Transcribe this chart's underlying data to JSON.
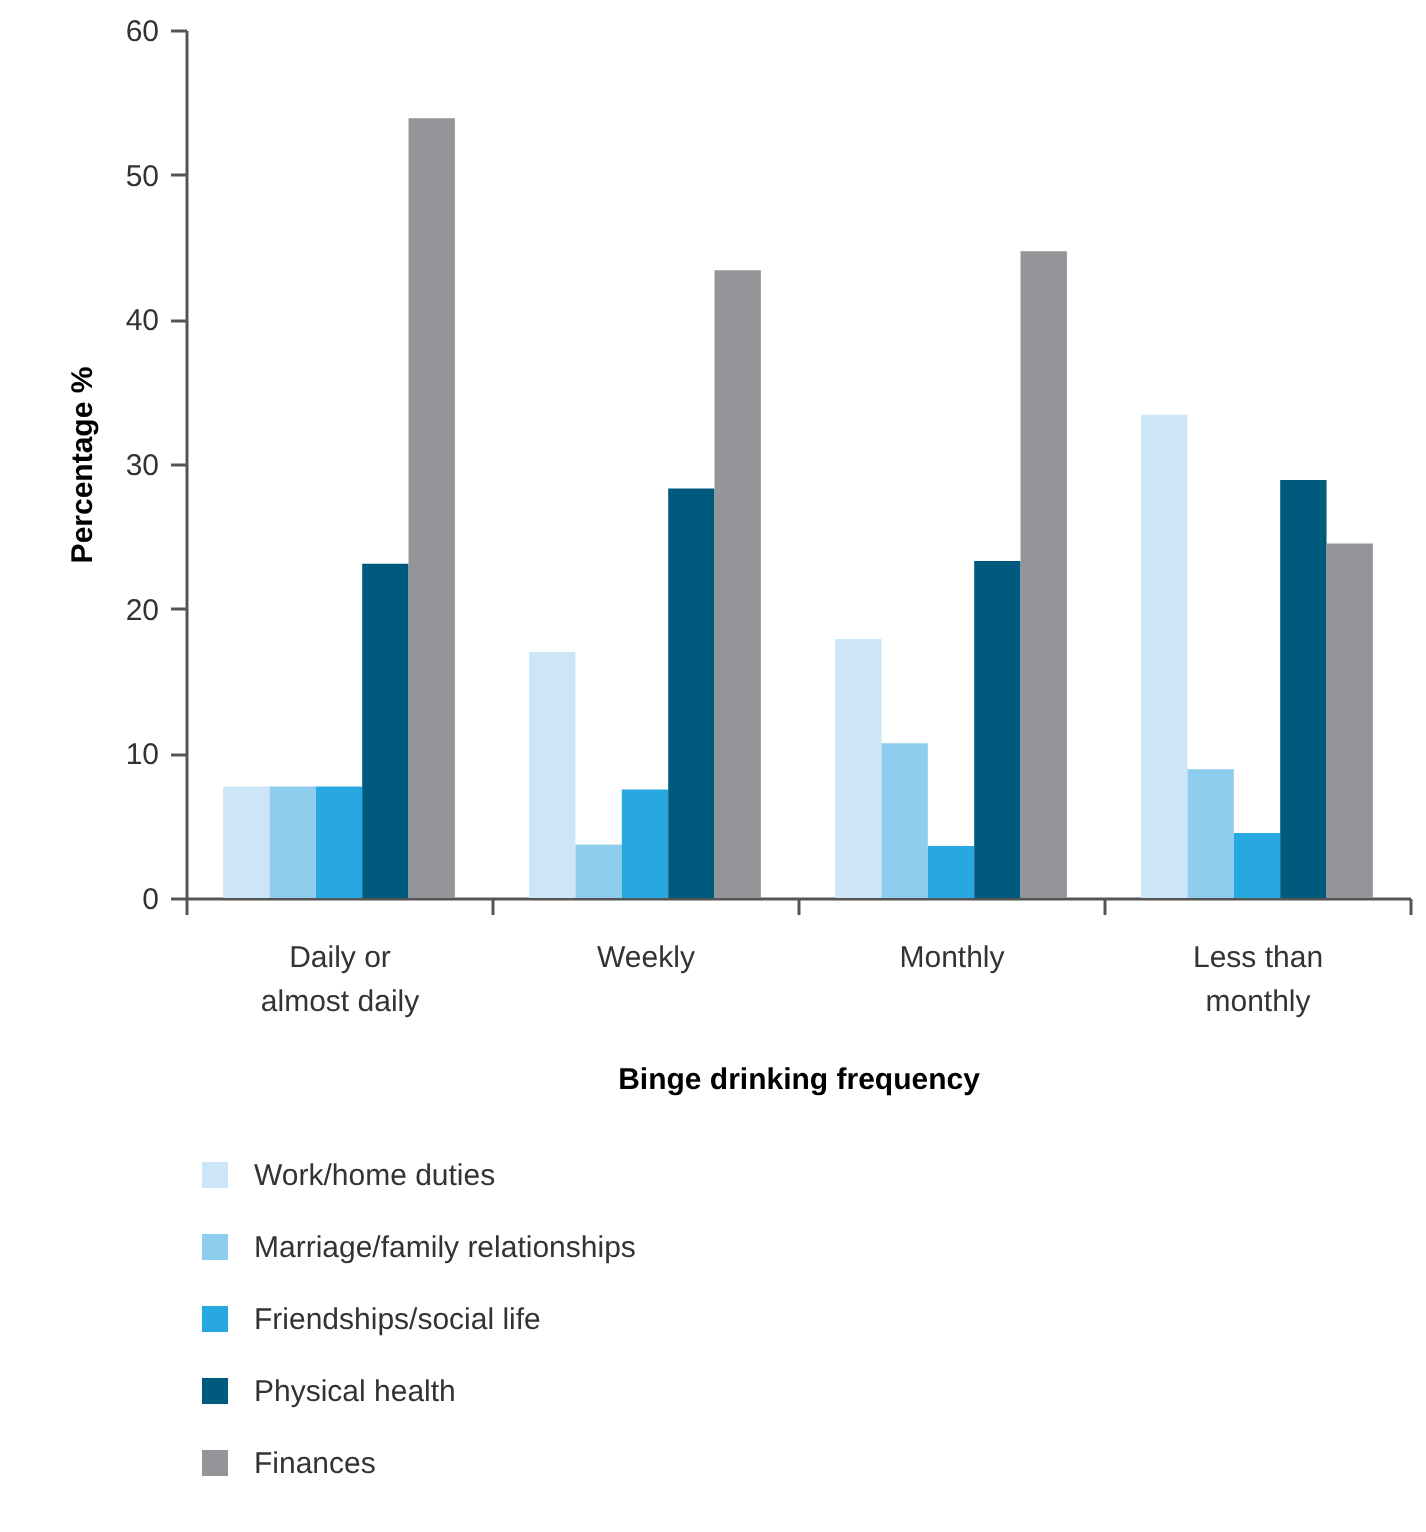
{
  "chart_data": {
    "type": "bar",
    "xlabel": "Binge drinking frequency",
    "ylabel": "Percentage %",
    "categories": [
      "Daily or almost daily",
      "Weekly",
      "Monthly",
      "Less than monthly"
    ],
    "series": [
      {
        "name": "Work/home duties",
        "color": "#cce6f8",
        "values": [
          7.7,
          17.0,
          17.9,
          33.4
        ]
      },
      {
        "name": "Marriage/family relationships",
        "color": "#8fcdee",
        "values": [
          7.7,
          3.7,
          10.7,
          8.9
        ]
      },
      {
        "name": "Friendships/social life",
        "color": "#27a8e0",
        "values": [
          7.7,
          7.5,
          3.6,
          4.5
        ]
      },
      {
        "name": "Physical health",
        "color": "#005a7e",
        "values": [
          23.1,
          28.3,
          23.3,
          28.9
        ]
      },
      {
        "name": "Finances",
        "color": "#939598",
        "values": [
          53.9,
          43.4,
          44.7,
          24.5
        ]
      }
    ],
    "ylim": [
      0,
      60
    ],
    "yticks": [
      0,
      10,
      20,
      30,
      40,
      50,
      60
    ],
    "grid": false,
    "legend": "bottom"
  }
}
